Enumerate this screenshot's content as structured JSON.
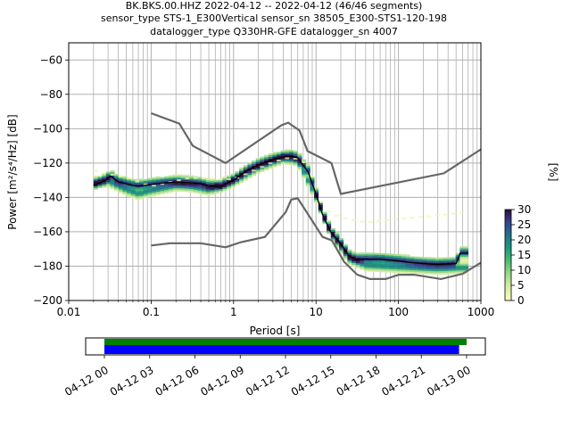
{
  "title_lines": [
    "BK.BKS.00.HHZ   2022-04-12 -- 2022-04-12  (46/46 segments)",
    "sensor_type STS-1_E300Vertical sensor_sn 38505_E300-STS1-120-198",
    "datalogger_type Q330HR-GFE datalogger_sn 4007"
  ],
  "chart_data": [
    {
      "type": "heatmap",
      "xlabel": "Period [s]",
      "ylabel": "Power [m²/s⁴/Hz] [dB]",
      "x_scale": "log",
      "xlim": [
        0.01,
        1000
      ],
      "ylim": [
        -200,
        -50
      ],
      "x_ticks": [
        0.01,
        0.1,
        1,
        10,
        100,
        1000
      ],
      "x_tick_labels": [
        "0.01",
        "0.1",
        "1",
        "10",
        "100",
        "1000"
      ],
      "y_ticks": [
        -200,
        -180,
        -160,
        -140,
        -120,
        -100,
        -80,
        -60
      ],
      "y_tick_labels": [
        "−200",
        "−180",
        "−160",
        "−140",
        "−120",
        "−100",
        "−80",
        "−60"
      ],
      "grid": true,
      "colorbar": {
        "label": "[%]",
        "min": 0,
        "max": 30,
        "ticks": [
          0,
          5,
          10,
          15,
          20,
          25,
          30
        ],
        "tick_labels": [
          "0",
          "5",
          "10",
          "15",
          "20",
          "25",
          "30"
        ],
        "colormap": [
          "#fcfdbf",
          "#d9eea4",
          "#9fd98a",
          "#4fbe72",
          "#1f9a7d",
          "#23728c",
          "#35468a",
          "#2b0f3f"
        ]
      },
      "noise_model_color": "#666666",
      "mean_color": "#000000",
      "nhnm": [
        [
          0.1,
          -91
        ],
        [
          0.22,
          -97
        ],
        [
          0.32,
          -110
        ],
        [
          0.8,
          -120
        ],
        [
          3.8,
          -98
        ],
        [
          4.6,
          -96.5
        ],
        [
          6.3,
          -101
        ],
        [
          7.9,
          -113
        ],
        [
          15.4,
          -120
        ],
        [
          20,
          -138
        ],
        [
          354.8,
          -126
        ],
        [
          1000,
          -112
        ]
      ],
      "nlnm": [
        [
          0.1,
          -168
        ],
        [
          0.17,
          -166.7
        ],
        [
          0.4,
          -166.7
        ],
        [
          0.8,
          -169
        ],
        [
          1.24,
          -166
        ],
        [
          2.4,
          -163
        ],
        [
          4.3,
          -148.5
        ],
        [
          5.0,
          -141.3
        ],
        [
          6.0,
          -140.5
        ],
        [
          10.0,
          -157
        ],
        [
          12.0,
          -163
        ],
        [
          15.6,
          -165
        ],
        [
          21.9,
          -177.5
        ],
        [
          31.6,
          -185
        ],
        [
          45,
          -187.5
        ],
        [
          70,
          -187.5
        ],
        [
          101,
          -185
        ],
        [
          154,
          -185
        ],
        [
          328,
          -187.5
        ],
        [
          600,
          -184.5
        ],
        [
          1000,
          -178
        ]
      ],
      "mean_psd": [
        [
          0.02,
          -133
        ],
        [
          0.025,
          -131
        ],
        [
          0.028,
          -130
        ],
        [
          0.032,
          -127.5
        ],
        [
          0.04,
          -131
        ],
        [
          0.05,
          -132
        ],
        [
          0.06,
          -133
        ],
        [
          0.07,
          -133.5
        ],
        [
          0.1,
          -132.5
        ],
        [
          0.15,
          -131.5
        ],
        [
          0.2,
          -131
        ],
        [
          0.3,
          -131.5
        ],
        [
          0.4,
          -132
        ],
        [
          0.5,
          -133.5
        ],
        [
          0.7,
          -133.5
        ],
        [
          1.0,
          -130
        ],
        [
          1.5,
          -124
        ],
        [
          2.0,
          -121
        ],
        [
          3.0,
          -118
        ],
        [
          4.0,
          -116.5
        ],
        [
          5.0,
          -116
        ],
        [
          6.0,
          -117
        ],
        [
          8.0,
          -125
        ],
        [
          10.0,
          -138
        ],
        [
          12.0,
          -150
        ],
        [
          15.0,
          -160
        ],
        [
          20.0,
          -167
        ],
        [
          25.0,
          -174
        ],
        [
          30.0,
          -176
        ],
        [
          40.0,
          -176
        ],
        [
          60.0,
          -176
        ],
        [
          100.0,
          -177
        ],
        [
          150.0,
          -178
        ],
        [
          200.0,
          -178.5
        ],
        [
          300.0,
          -179
        ],
        [
          500.0,
          -178.5
        ],
        [
          560.0,
          -172.5
        ],
        [
          700.0,
          -172.5
        ]
      ],
      "secondary_psd": [
        [
          0.02,
          -132
        ],
        [
          0.03,
          -131
        ],
        [
          0.05,
          -136
        ],
        [
          0.07,
          -138.5
        ],
        [
          0.1,
          -136.5
        ],
        [
          0.2,
          -133.5
        ],
        [
          0.3,
          -134
        ],
        [
          0.5,
          -136
        ],
        [
          0.7,
          -134
        ],
        [
          1.0,
          -131
        ],
        [
          2.0,
          -123
        ],
        [
          4.0,
          -117.5
        ],
        [
          6.0,
          -119
        ],
        [
          10.0,
          -140
        ],
        [
          15.0,
          -161
        ],
        [
          25.0,
          -176
        ],
        [
          40.0,
          -180
        ],
        [
          100.0,
          -181
        ],
        [
          300.0,
          -182
        ],
        [
          550.0,
          -181.5
        ]
      ],
      "faint_trend_psd": [
        [
          0.02,
          -125
        ],
        [
          0.05,
          -129
        ],
        [
          0.1,
          -134
        ],
        [
          0.3,
          -129
        ],
        [
          1.0,
          -130
        ],
        [
          3.0,
          -120
        ],
        [
          5.0,
          -117
        ],
        [
          8.0,
          -121
        ],
        [
          12.0,
          -147
        ],
        [
          20.0,
          -152
        ],
        [
          40.0,
          -155
        ],
        [
          100.0,
          -153
        ],
        [
          300.0,
          -151
        ],
        [
          700.0,
          -149
        ]
      ]
    },
    {
      "type": "bar",
      "title": "",
      "x_scale": "time",
      "xlim": [
        "2022-04-12 00:00",
        "2022-04-13 00:00"
      ],
      "x_tick_labels": [
        "04-12 00",
        "04-12 03",
        "04-12 06",
        "04-12 09",
        "04-12 12",
        "04-12 15",
        "04-12 18",
        "04-12 21",
        "04-13 00"
      ],
      "x_tick_hours": [
        0,
        3,
        6,
        9,
        12,
        15,
        18,
        21,
        24
      ],
      "series": [
        {
          "color": "#008000",
          "start_hour": 0.0,
          "end_hour": 24.0
        },
        {
          "color": "#0000ff",
          "start_hour": 0.0,
          "end_hour": 23.5
        }
      ]
    }
  ]
}
